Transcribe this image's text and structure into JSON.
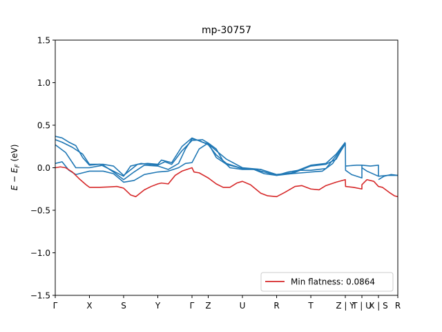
{
  "chart_data": {
    "type": "line",
    "title": "mp-30757",
    "xlabel": "",
    "ylabel": "E − E_F (eV)",
    "ylim": [
      -1.5,
      1.5
    ],
    "xlim": [
      0,
      1
    ],
    "grid": false,
    "legend_placement": "lower-right",
    "y_ticks": [
      "1.5",
      "1.0",
      "0.5",
      "0.0",
      "−0.5",
      "−1.0",
      "−1.5"
    ],
    "y_tick_values": [
      1.5,
      1.0,
      0.5,
      0.0,
      -0.5,
      -1.0,
      -1.5
    ],
    "x_ticks": [
      {
        "label": "Γ",
        "x": 0.0
      },
      {
        "label": "X",
        "x": 0.0998
      },
      {
        "label": "S",
        "x": 0.1996
      },
      {
        "label": "Y",
        "x": 0.2994
      },
      {
        "label": "Γ",
        "x": 0.3992
      },
      {
        "label": "Z",
        "x": 0.4466
      },
      {
        "label": "U",
        "x": 0.5464
      },
      {
        "label": "R",
        "x": 0.6463
      },
      {
        "label": "T",
        "x": 0.7461
      },
      {
        "label": "Z | Y",
        "x": 0.8468
      },
      {
        "label": "T | U",
        "x": 0.8952
      },
      {
        "label": "X | S",
        "x": 0.9435
      },
      {
        "label": "R",
        "x": 1.0
      }
    ],
    "series": [
      {
        "name": "",
        "color": "#1f77b4",
        "points": [
          [
            0.0,
            0.05
          ],
          [
            0.02,
            0.07
          ],
          [
            0.04,
            -0.03
          ],
          [
            0.06,
            -0.08
          ],
          [
            0.0998,
            -0.04
          ],
          [
            0.14,
            -0.04
          ],
          [
            0.17,
            -0.07
          ],
          [
            0.1996,
            -0.17
          ],
          [
            0.23,
            -0.15
          ],
          [
            0.26,
            -0.08
          ],
          [
            0.2994,
            -0.05
          ],
          [
            0.33,
            -0.04
          ],
          [
            0.36,
            0.0
          ],
          [
            0.38,
            0.05
          ],
          [
            0.3992,
            0.06
          ],
          [
            0.42,
            0.22
          ],
          [
            0.4466,
            0.29
          ],
          [
            0.47,
            0.22
          ],
          [
            0.49,
            0.08
          ],
          [
            0.51,
            0.0
          ],
          [
            0.5464,
            -0.02
          ],
          [
            0.58,
            -0.02
          ],
          [
            0.61,
            -0.07
          ],
          [
            0.6463,
            -0.09
          ],
          [
            0.68,
            -0.05
          ],
          [
            0.71,
            -0.03
          ],
          [
            0.7461,
            -0.03
          ],
          [
            0.79,
            -0.01
          ],
          [
            0.82,
            0.14
          ],
          [
            0.8468,
            0.29
          ]
        ]
      },
      {
        "name": "",
        "color": "#1f77b4",
        "points": [
          [
            0.0,
            0.37
          ],
          [
            0.02,
            0.35
          ],
          [
            0.04,
            0.3
          ],
          [
            0.06,
            0.26
          ],
          [
            0.08,
            0.12
          ],
          [
            0.0998,
            0.03
          ],
          [
            0.13,
            0.04
          ],
          [
            0.16,
            -0.02
          ],
          [
            0.1996,
            -0.1
          ],
          [
            0.22,
            0.02
          ],
          [
            0.25,
            0.05
          ],
          [
            0.2994,
            0.03
          ],
          [
            0.32,
            0.07
          ],
          [
            0.34,
            0.04
          ],
          [
            0.37,
            0.2
          ],
          [
            0.3992,
            0.32
          ],
          [
            0.43,
            0.33
          ],
          [
            0.4466,
            0.29
          ],
          [
            0.47,
            0.12
          ],
          [
            0.5,
            0.04
          ],
          [
            0.5464,
            -0.01
          ],
          [
            0.58,
            -0.02
          ],
          [
            0.61,
            -0.05
          ],
          [
            0.6463,
            -0.09
          ],
          [
            0.69,
            -0.07
          ],
          [
            0.7461,
            -0.05
          ],
          [
            0.78,
            -0.04
          ],
          [
            0.81,
            0.05
          ],
          [
            0.8468,
            0.28
          ]
        ]
      },
      {
        "name": "",
        "color": "#1f77b4",
        "points": [
          [
            0.0,
            0.33
          ],
          [
            0.02,
            0.3
          ],
          [
            0.05,
            0.24
          ],
          [
            0.08,
            0.16
          ],
          [
            0.0998,
            0.04
          ],
          [
            0.14,
            0.04
          ],
          [
            0.17,
            0.02
          ],
          [
            0.1996,
            -0.09
          ],
          [
            0.24,
            0.04
          ],
          [
            0.27,
            0.05
          ],
          [
            0.2994,
            0.04
          ],
          [
            0.31,
            0.09
          ],
          [
            0.34,
            0.06
          ],
          [
            0.37,
            0.25
          ],
          [
            0.3992,
            0.35
          ],
          [
            0.43,
            0.3
          ],
          [
            0.4466,
            0.28
          ],
          [
            0.47,
            0.2
          ],
          [
            0.5,
            0.1
          ],
          [
            0.5464,
            0.0
          ],
          [
            0.6,
            -0.02
          ],
          [
            0.63,
            -0.06
          ],
          [
            0.6463,
            -0.08
          ],
          [
            0.69,
            -0.06
          ],
          [
            0.7461,
            0.03
          ],
          [
            0.79,
            0.05
          ],
          [
            0.82,
            0.16
          ],
          [
            0.8468,
            0.3
          ]
        ]
      },
      {
        "name": "",
        "color": "#1f77b4",
        "points": [
          [
            0.0,
            0.27
          ],
          [
            0.03,
            0.18
          ],
          [
            0.06,
            0.0
          ],
          [
            0.0998,
            0.0
          ],
          [
            0.14,
            0.03
          ],
          [
            0.17,
            -0.05
          ],
          [
            0.1996,
            -0.14
          ],
          [
            0.23,
            -0.05
          ],
          [
            0.26,
            0.03
          ],
          [
            0.2994,
            0.02
          ],
          [
            0.33,
            -0.02
          ],
          [
            0.36,
            0.05
          ],
          [
            0.38,
            0.22
          ],
          [
            0.3992,
            0.34
          ],
          [
            0.42,
            0.32
          ],
          [
            0.4466,
            0.27
          ],
          [
            0.47,
            0.15
          ],
          [
            0.5,
            0.05
          ],
          [
            0.5464,
            -0.01
          ],
          [
            0.6,
            -0.02
          ],
          [
            0.63,
            -0.06
          ],
          [
            0.6463,
            -0.08
          ],
          [
            0.69,
            -0.07
          ],
          [
            0.7461,
            0.02
          ],
          [
            0.79,
            0.04
          ],
          [
            0.82,
            0.1
          ],
          [
            0.8468,
            0.29
          ]
        ]
      },
      {
        "name": "",
        "color": "#1f77b4",
        "points": [
          [
            0.8468,
            0.29
          ],
          [
            0.8475,
            -0.03
          ],
          [
            0.865,
            -0.08
          ],
          [
            0.8952,
            -0.12
          ],
          [
            0.8952,
            0.03
          ],
          [
            0.88,
            0.03
          ],
          [
            0.8475,
            0.02
          ]
        ]
      },
      {
        "name": "",
        "color": "#1f77b4",
        "points": [
          [
            0.8952,
            0.0
          ],
          [
            0.91,
            -0.04
          ],
          [
            0.9435,
            -0.1
          ],
          [
            0.9435,
            0.03
          ],
          [
            0.92,
            0.02
          ],
          [
            0.8952,
            0.03
          ]
        ]
      },
      {
        "name": "",
        "color": "#1f77b4",
        "points": [
          [
            0.9435,
            -0.14
          ],
          [
            0.96,
            -0.1
          ],
          [
            0.98,
            -0.08
          ],
          [
            1.0,
            -0.09
          ]
        ]
      },
      {
        "name": "",
        "color": "#1f77b4",
        "points": [
          [
            0.9435,
            -0.1
          ],
          [
            0.97,
            -0.09
          ],
          [
            1.0,
            -0.09
          ]
        ]
      },
      {
        "name": "Min flatness: 0.0864",
        "color": "#d62728",
        "points": [
          [
            0.0,
            0.0
          ],
          [
            0.015,
            0.01
          ],
          [
            0.03,
            0.0
          ],
          [
            0.05,
            -0.05
          ],
          [
            0.07,
            -0.13
          ],
          [
            0.09,
            -0.2
          ],
          [
            0.0998,
            -0.23
          ],
          [
            0.13,
            -0.23
          ],
          [
            0.16,
            -0.225
          ],
          [
            0.18,
            -0.22
          ],
          [
            0.1996,
            -0.24
          ],
          [
            0.22,
            -0.32
          ],
          [
            0.235,
            -0.34
          ],
          [
            0.26,
            -0.26
          ],
          [
            0.28,
            -0.22
          ],
          [
            0.2994,
            -0.19
          ],
          [
            0.31,
            -0.18
          ],
          [
            0.33,
            -0.19
          ],
          [
            0.35,
            -0.09
          ],
          [
            0.37,
            -0.04
          ],
          [
            0.3992,
            0.0
          ],
          [
            0.405,
            -0.05
          ],
          [
            0.42,
            -0.06
          ],
          [
            0.4466,
            -0.12
          ],
          [
            0.47,
            -0.19
          ],
          [
            0.49,
            -0.23
          ],
          [
            0.51,
            -0.23
          ],
          [
            0.53,
            -0.18
          ],
          [
            0.5464,
            -0.16
          ],
          [
            0.57,
            -0.2
          ],
          [
            0.6,
            -0.3
          ],
          [
            0.62,
            -0.33
          ],
          [
            0.6463,
            -0.34
          ],
          [
            0.67,
            -0.29
          ],
          [
            0.7,
            -0.22
          ],
          [
            0.72,
            -0.21
          ],
          [
            0.7461,
            -0.25
          ],
          [
            0.77,
            -0.26
          ],
          [
            0.79,
            -0.21
          ],
          [
            0.82,
            -0.17
          ],
          [
            0.8468,
            -0.14
          ],
          [
            0.8475,
            -0.22
          ],
          [
            0.87,
            -0.23
          ],
          [
            0.8952,
            -0.25
          ],
          [
            0.8952,
            -0.2
          ],
          [
            0.91,
            -0.14
          ],
          [
            0.93,
            -0.16
          ],
          [
            0.9435,
            -0.22
          ],
          [
            0.955,
            -0.23
          ],
          [
            0.975,
            -0.29
          ],
          [
            0.99,
            -0.33
          ],
          [
            1.0,
            -0.34
          ]
        ]
      }
    ]
  }
}
